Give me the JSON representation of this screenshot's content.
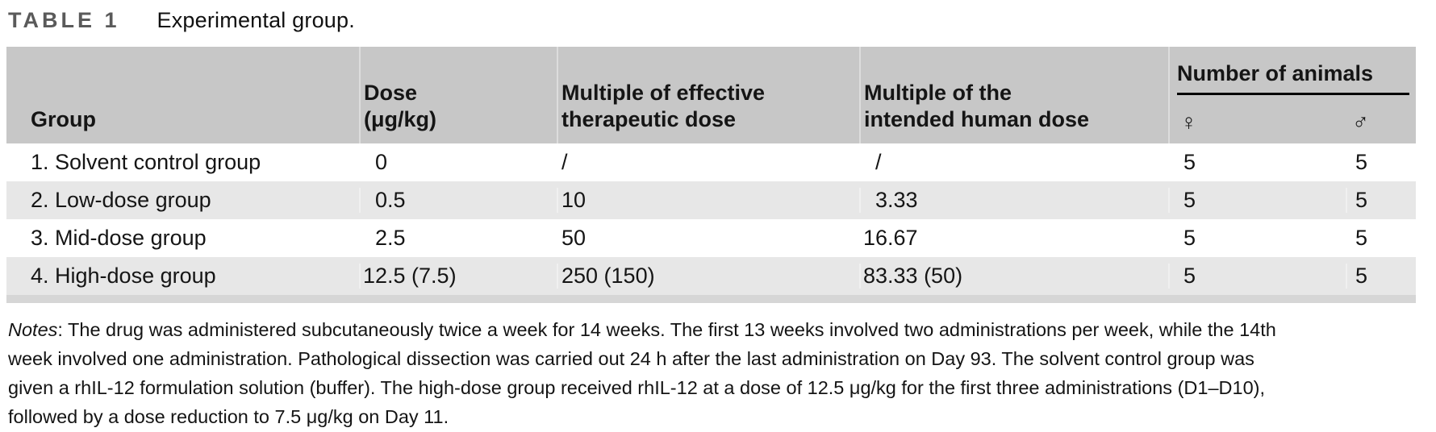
{
  "title": {
    "label": "TABLE 1",
    "caption": "Experimental group."
  },
  "table": {
    "columns": [
      {
        "label": "Group",
        "label2": ""
      },
      {
        "label": "Dose",
        "label2": "(μg/kg)"
      },
      {
        "label": "Multiple of effective",
        "label2": "therapeutic dose"
      },
      {
        "label": "Multiple of the",
        "label2": "intended human dose"
      }
    ],
    "animals_header": {
      "label": "Number of animals",
      "female_symbol": "♀",
      "male_symbol": "♂"
    },
    "rows": [
      {
        "group": "1. Solvent control group",
        "dose": " 0",
        "multiple_effective": "/",
        "multiple_human": " /",
        "female": "5",
        "male": "5"
      },
      {
        "group": "2. Low-dose group",
        "dose": " 0.5",
        "multiple_effective": "10",
        "multiple_human": " 3.33",
        "female": "5",
        "male": "5"
      },
      {
        "group": "3. Mid-dose group",
        "dose": " 2.5",
        "multiple_effective": "50",
        "multiple_human": "16.67",
        "female": "5",
        "male": "5"
      },
      {
        "group": "4. High-dose group",
        "dose": "12.5 (7.5)",
        "multiple_effective": "250 (150)",
        "multiple_human": "83.33 (50)",
        "female": "5",
        "male": "5"
      }
    ]
  },
  "notes": {
    "label": "Notes",
    "lines": [
      ": The drug was administered subcutaneously twice a week for 14 weeks. The first 13 weeks involved two administrations per week, while the 14th",
      "week involved one administration. Pathological dissection was carried out 24 h after the last administration on Day 93. The solvent control group was",
      "given a rhIL-12 formulation solution (buffer). The high-dose group received rhIL-12 at a dose of 12.5 μg/kg for the first three administrations (D1–D10),",
      "followed by a dose reduction to 7.5 μg/kg on Day 11."
    ]
  },
  "colors": {
    "header_background": "#c7c7c7",
    "shaded_row_background": "#e7e7e7",
    "bottom_border": "#d6d6d6",
    "table_label_gray": "#5a5a5a"
  }
}
